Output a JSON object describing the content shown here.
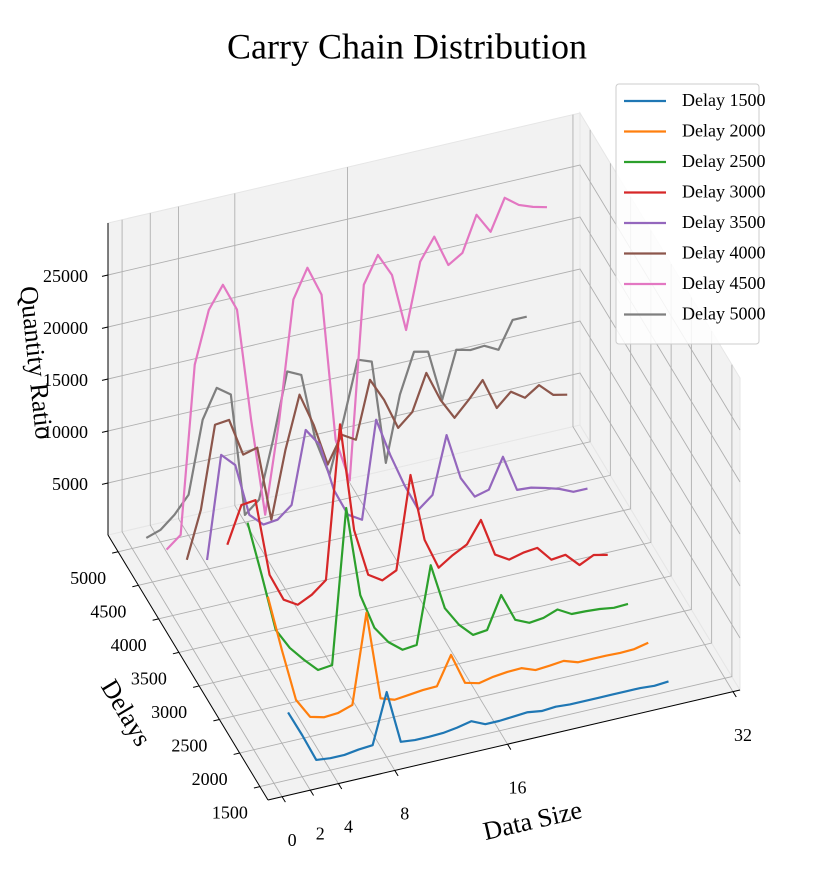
{
  "chart_data": {
    "type": "line3d",
    "title": "Carry Chain Distribution",
    "xlabel": "Data Size",
    "ylabel": "Delays",
    "zlabel": "Quantity Ratio",
    "x": [
      1,
      2,
      3,
      4,
      5,
      6,
      7,
      8,
      9,
      10,
      11,
      12,
      13,
      14,
      15,
      16,
      17,
      18,
      19,
      20,
      21,
      22,
      23,
      24,
      25,
      26,
      27,
      28
    ],
    "xlim": [
      -1,
      32.5
    ],
    "xticks": [
      0,
      2,
      4,
      8,
      16,
      32
    ],
    "ylim": [
      1300,
      5250
    ],
    "yticks": [
      1500,
      2000,
      2500,
      3000,
      3500,
      4000,
      4500,
      5000
    ],
    "zlim": [
      0,
      30000
    ],
    "zticks": [
      5000,
      10000,
      15000,
      20000,
      25000
    ],
    "grid": true,
    "legend": "upper right",
    "series": [
      {
        "name": "Delay 1500",
        "color": "#1f77b4",
        "y": 1500,
        "values": [
          6500,
          4000,
          1300,
          1150,
          1150,
          1350,
          1450,
          6250,
          1150,
          1000,
          1000,
          1050,
          1250,
          1550,
          950,
          950,
          1050,
          1150,
          950,
          1050,
          950,
          950,
          950,
          950,
          950,
          950,
          850,
          950
        ]
      },
      {
        "name": "Delay 2000",
        "color": "#ff7f0e",
        "y": 2000,
        "values": [
          14400,
          8950,
          3850,
          1900,
          1550,
          1650,
          2100,
          10650,
          2100,
          1650,
          1800,
          1950,
          2000,
          4700,
          1700,
          1350,
          1650,
          1800,
          1850,
          1350,
          1450,
          1600,
          1150,
          1150,
          1150,
          1100,
          1150,
          1450
        ]
      },
      {
        "name": "Delay 2500",
        "color": "#2ca02c",
        "y": 2500,
        "values": [
          18300,
          12950,
          7350,
          5300,
          3850,
          2550,
          2700,
          17500,
          8800,
          5350,
          3650,
          2600,
          2750,
          10100,
          5650,
          3750,
          2450,
          2600,
          5650,
          2950,
          2350,
          2500,
          3000,
          2250,
          2200,
          2100,
          1900,
          1950
        ]
      },
      {
        "name": "Delay 3000",
        "color": "#d62728",
        "y": 3000,
        "values": [
          12950,
          16450,
          16600,
          9100,
          6400,
          5600,
          6250,
          7350,
          22000,
          11500,
          6900,
          6050,
          6700,
          15550,
          9000,
          6000,
          6900,
          7600,
          9650,
          6000,
          5200,
          5550,
          5700,
          4250,
          4400,
          3100,
          3750,
          3450
        ]
      },
      {
        "name": "Delay 3500",
        "color": "#9467bd",
        "y": 3500,
        "values": [
          8250,
          18050,
          16750,
          11650,
          10400,
          10550,
          11650,
          18550,
          16800,
          12150,
          9450,
          8650,
          17950,
          14250,
          11050,
          8350,
          9450,
          14900,
          10450,
          8350,
          8700,
          11550,
          8050,
          7950,
          7600,
          7200,
          6600,
          6600
        ]
      },
      {
        "name": "Delay 4000",
        "color": "#8c564b",
        "y": 4000,
        "values": [
          5050,
          9550,
          17400,
          17550,
          13900,
          14250,
          7000,
          13400,
          18400,
          15200,
          11050,
          13600,
          12800,
          18250,
          16000,
          13000,
          14200,
          17650,
          14750,
          12700,
          14100,
          15700,
          12700,
          13950,
          13050,
          13950,
          12700,
          12400
        ]
      },
      {
        "name": "Delay 4500",
        "color": "#e377c2",
        "y": 4500,
        "values": [
          2800,
          3900,
          19950,
          24900,
          27000,
          24300,
          13400,
          3950,
          12750,
          24000,
          26750,
          23850,
          9550,
          5350,
          23850,
          26400,
          24150,
          18550,
          24800,
          26900,
          23850,
          24700,
          28050,
          26100,
          29050,
          28050,
          27550,
          27200
        ]
      },
      {
        "name": "Delay 5000",
        "color": "#7f7f7f",
        "y": 5000,
        "values": [
          700,
          1150,
          2300,
          3900,
          10800,
          13550,
          12600,
          700,
          1850,
          7300,
          13550,
          12900,
          6350,
          2650,
          7650,
          13100,
          12600,
          2550,
          8800,
          12600,
          12300,
          7350,
          11850,
          11500,
          11600,
          10900,
          13450,
          13450
        ]
      }
    ]
  }
}
